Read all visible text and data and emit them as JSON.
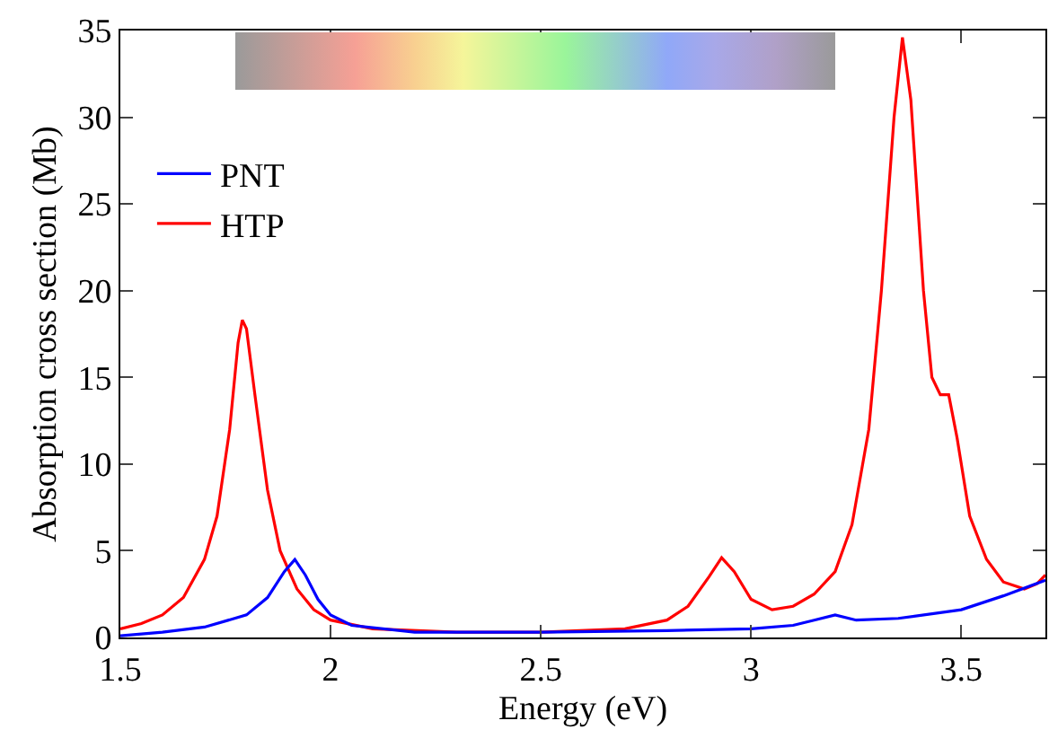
{
  "chart_data": {
    "type": "line",
    "xlabel": "Energy (eV)",
    "ylabel": "Absorption cross section (Mb)",
    "xlim": [
      1.5,
      3.7
    ],
    "xticks": [
      1.5,
      2,
      2.5,
      3,
      3.5
    ],
    "ylim": [
      0,
      35
    ],
    "yticks": [
      0,
      5,
      10,
      15,
      20,
      25,
      30,
      35
    ],
    "grid": false,
    "legend": "top left",
    "series": [
      {
        "name": "PNT",
        "color": "#0000ff",
        "x": [
          1.5,
          1.6,
          1.7,
          1.8,
          1.85,
          1.89,
          1.915,
          1.94,
          1.97,
          2.0,
          2.05,
          2.2,
          2.5,
          2.8,
          3.0,
          3.1,
          3.15,
          3.2,
          3.25,
          3.35,
          3.5,
          3.6,
          3.7
        ],
        "values": [
          0.1,
          0.3,
          0.6,
          1.3,
          2.3,
          3.8,
          4.5,
          3.6,
          2.2,
          1.3,
          0.7,
          0.3,
          0.3,
          0.4,
          0.5,
          0.7,
          1.0,
          1.3,
          1.0,
          1.1,
          1.6,
          2.4,
          3.3
        ]
      },
      {
        "name": "HTP",
        "color": "#ff0000",
        "x": [
          1.5,
          1.55,
          1.6,
          1.65,
          1.7,
          1.73,
          1.76,
          1.78,
          1.79,
          1.8,
          1.82,
          1.85,
          1.88,
          1.92,
          1.96,
          2.0,
          2.1,
          2.3,
          2.5,
          2.7,
          2.8,
          2.85,
          2.9,
          2.93,
          2.96,
          3.0,
          3.05,
          3.1,
          3.15,
          3.2,
          3.24,
          3.28,
          3.31,
          3.34,
          3.36,
          3.38,
          3.41,
          3.43,
          3.45,
          3.47,
          3.49,
          3.52,
          3.56,
          3.6,
          3.65,
          3.68,
          3.7
        ],
        "values": [
          0.5,
          0.8,
          1.3,
          2.3,
          4.5,
          7,
          12,
          17,
          18.3,
          17.8,
          14,
          8.5,
          5,
          2.8,
          1.6,
          1.0,
          0.5,
          0.3,
          0.3,
          0.5,
          1.0,
          1.8,
          3.5,
          4.6,
          3.8,
          2.2,
          1.6,
          1.8,
          2.5,
          3.8,
          6.5,
          12,
          20,
          30,
          34.6,
          31,
          20,
          15,
          14,
          14,
          11.5,
          7,
          4.5,
          3.2,
          2.8,
          3.1,
          3.6
        ]
      }
    ]
  }
}
